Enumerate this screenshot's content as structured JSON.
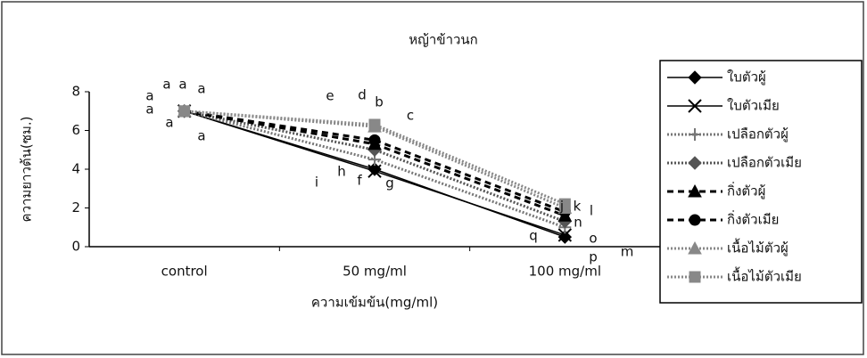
{
  "chart_data": {
    "type": "line",
    "title": "หญ้าข้าวนก",
    "x_label": "ความเข้มข้น(mg/ml)",
    "y_label": "ความยาวต้น(ซม.)",
    "categories": [
      "control",
      "50 mg/ml",
      "100 mg/ml"
    ],
    "ylim": [
      0,
      8
    ],
    "yticks": [
      0,
      2,
      4,
      6,
      8
    ],
    "series": [
      {
        "name": "ใบตัวผู้",
        "color": "#000000",
        "marker": "diamond",
        "dash": "solid",
        "values": [
          7,
          4.0,
          0.5
        ]
      },
      {
        "name": "ใบตัวเมีย",
        "color": "#000000",
        "marker": "x",
        "dash": "solid",
        "values": [
          7,
          3.9,
          0.6
        ]
      },
      {
        "name": "เปลือกตัวผู้",
        "color": "#777777",
        "marker": "plus",
        "dash": "dotted",
        "values": [
          7,
          4.5,
          1.0
        ]
      },
      {
        "name": "เปลือกตัวเมีย",
        "color": "#555555",
        "marker": "diamond",
        "dash": "dotted",
        "values": [
          7,
          5.0,
          1.3
        ]
      },
      {
        "name": "กิ่งตัวผู้",
        "color": "#000000",
        "marker": "triangle",
        "dash": "dashed",
        "values": [
          7,
          5.3,
          1.6
        ]
      },
      {
        "name": "กิ่งตัวเมีย",
        "color": "#000000",
        "marker": "circle",
        "dash": "dashed",
        "values": [
          7,
          5.5,
          1.8
        ]
      },
      {
        "name": "เนื้อไม้ตัวผู้",
        "color": "#888888",
        "marker": "triangle",
        "dash": "dotted",
        "values": [
          7,
          6.2,
          2.0
        ]
      },
      {
        "name": "เนื้อไม้ตัวเมีย",
        "color": "#888888",
        "marker": "square",
        "dash": "dotted",
        "values": [
          7,
          6.3,
          2.2
        ]
      }
    ],
    "annotations": [
      "a",
      "a",
      "a",
      "a",
      "a",
      "a",
      "a",
      "e",
      "d",
      "b",
      "c",
      "i",
      "h",
      "f",
      "g",
      "j",
      "k",
      "l",
      "n",
      "o",
      "q",
      "p",
      "m"
    ]
  }
}
